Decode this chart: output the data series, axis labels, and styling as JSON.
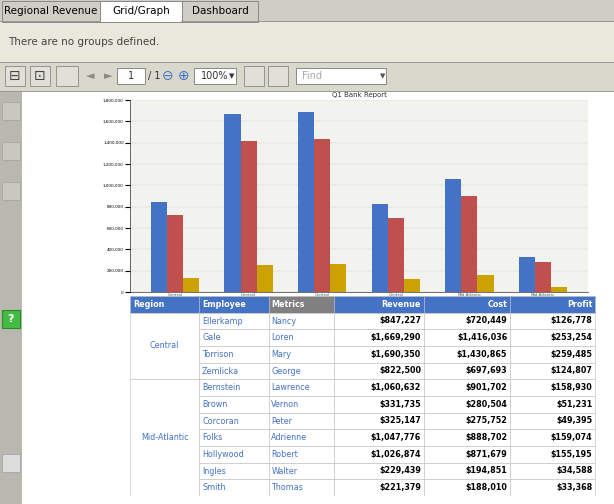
{
  "title": "Q1 Bank Report",
  "tab_labels": [
    "Regional Revenue",
    "Grid/Graph",
    "Dashboard"
  ],
  "active_tab": "Grid/Graph",
  "no_groups_text": "There are no groups defined.",
  "chart": {
    "groups": [
      {
        "label": "Central\nEllerkamp Nancy",
        "revenue": 847227,
        "cost": 720449,
        "profit": 126778
      },
      {
        "label": "Central\nGale Loren",
        "revenue": 1669290,
        "cost": 1416036,
        "profit": 253254
      },
      {
        "label": "Central\nTorrison Mary",
        "revenue": 1690350,
        "cost": 1430865,
        "profit": 259485
      },
      {
        "label": "Central\nZemlicka George",
        "revenue": 822500,
        "cost": 697693,
        "profit": 124807
      },
      {
        "label": "Mid-Atlantic\nBernstein Lawrence",
        "revenue": 1060632,
        "cost": 901702,
        "profit": 158930
      },
      {
        "label": "Mid-Atlantic\nBrown Vernon",
        "revenue": 331735,
        "cost": 280504,
        "profit": 51231
      }
    ],
    "revenue_color": "#4472C4",
    "cost_color": "#C0504D",
    "profit_color": "#CCA200",
    "legend_labels": [
      "Revenue",
      "Cost",
      "Profit"
    ],
    "yticks": [
      0,
      200000,
      400000,
      600000,
      800000,
      1000000,
      1200000,
      1400000,
      1600000,
      1800000
    ]
  },
  "table": {
    "header_bg": "#4472C4",
    "header_fg": "#FFFFFF",
    "metrics_bg": "#808080",
    "metrics_fg": "#FFFFFF",
    "region_fg": "#4472C4",
    "employee_fg": "#4472C4",
    "data_fg": "#000000",
    "border_color": "#AAAAAA",
    "headers": [
      "Region",
      "Employee",
      "Metrics",
      "Revenue",
      "Cost",
      "Profit"
    ],
    "rows": [
      [
        "Central",
        "Ellerkamp",
        "Nancy",
        "$847,227",
        "$720,449",
        "$126,778"
      ],
      [
        "Central",
        "Gale",
        "Loren",
        "$1,669,290",
        "$1,416,036",
        "$253,254"
      ],
      [
        "Central",
        "Torrison",
        "Mary",
        "$1,690,350",
        "$1,430,865",
        "$259,485"
      ],
      [
        "Central",
        "Zemlicka",
        "George",
        "$822,500",
        "$697,693",
        "$124,807"
      ],
      [
        "Mid-Atlantic",
        "Bernstein",
        "Lawrence",
        "$1,060,632",
        "$901,702",
        "$158,930"
      ],
      [
        "Mid-Atlantic",
        "Brown",
        "Vernon",
        "$331,735",
        "$280,504",
        "$51,231"
      ],
      [
        "Mid-Atlantic",
        "Corcoran",
        "Peter",
        "$325,147",
        "$275,752",
        "$49,395"
      ],
      [
        "Mid-Atlantic",
        "Folks",
        "Adrienne",
        "$1,047,776",
        "$888,702",
        "$159,074"
      ],
      [
        "Mid-Atlantic",
        "Hollywood",
        "Robert",
        "$1,026,874",
        "$871,679",
        "$155,195"
      ],
      [
        "Mid-Atlantic",
        "Ingles",
        "Walter",
        "$229,439",
        "$194,851",
        "$34,588"
      ],
      [
        "Mid-Atlantic",
        "Smith",
        "Thomas",
        "$221,379",
        "$188,010",
        "$33,368"
      ]
    ]
  },
  "bg_color": "#E8E8DC",
  "content_bg": "#FFFFFF",
  "tab_bg": "#D0CEC4",
  "active_tab_bg": "#FFFFFF",
  "toolbar_bg": "#D8D8CC",
  "sidebar_bg": "#B8B8B0"
}
